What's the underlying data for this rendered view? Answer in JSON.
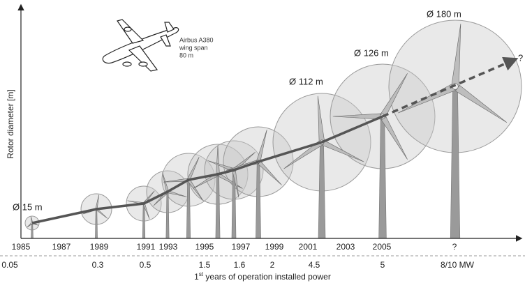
{
  "y_axis_label": "Rotor diameter [m]",
  "x_axis_title": {
    "number": "1",
    "suffix": "st",
    "text": " years of operation installed power"
  },
  "years": [
    "1985",
    "1987",
    "1989",
    "1991",
    "1993",
    "1995",
    "1997",
    "1999",
    "2001",
    "2003",
    "2005",
    "?"
  ],
  "power": [
    "0.05",
    "0.3",
    "0.5",
    "1.5",
    "1.6",
    "2",
    "4.5",
    "5",
    "8/10 MW"
  ],
  "diameter_labels": [
    "Ø 15 m",
    "Ø 112 m",
    "Ø 126 m",
    "Ø 180 m"
  ],
  "trend_end_label": "?",
  "airplane": {
    "name": "Airbus A380",
    "line2": "wing span",
    "line3": "80 m"
  }
}
